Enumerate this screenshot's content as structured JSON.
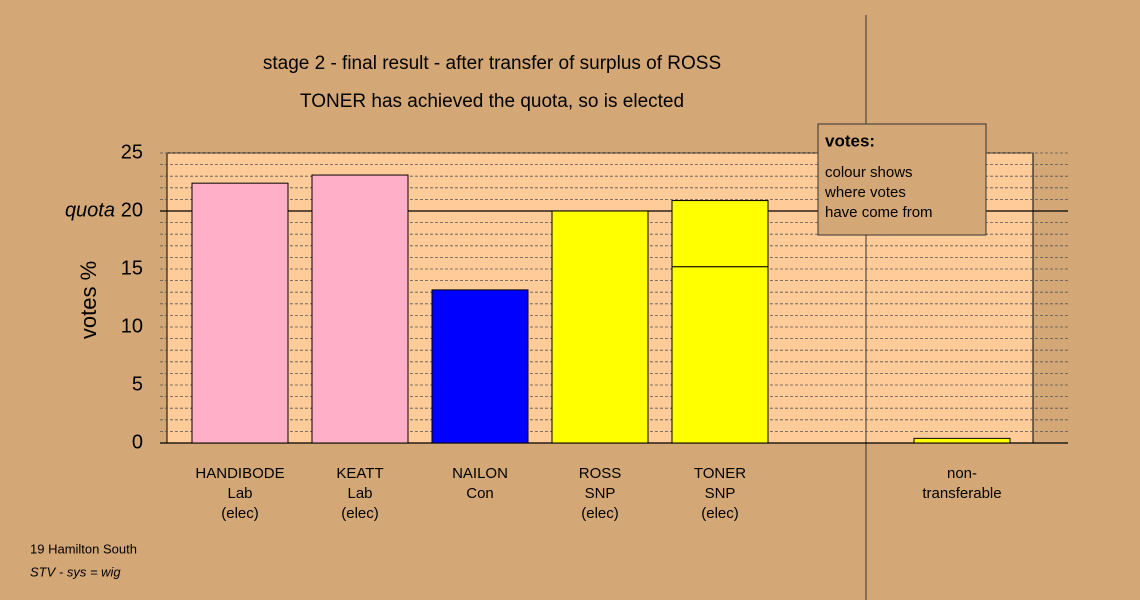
{
  "chart_data": {
    "type": "stacked_bar",
    "title": "stage 2 - final result - after transfer of surplus of ROSS",
    "subtitle": "TONER has achieved the quota, so is elected",
    "ylabel": "votes %",
    "quota": 20,
    "quota_label": "quota",
    "categories": [
      [
        "HANDIBODE",
        "Lab",
        "(elec)"
      ],
      [
        "KEATT",
        "Lab",
        "(elec)"
      ],
      [
        "NAILON",
        "Con"
      ],
      [
        "ROSS",
        "SNP",
        "(elec)"
      ],
      [
        "TONER",
        "SNP",
        "(elec)"
      ],
      [
        "non-",
        "transferable"
      ]
    ],
    "series": [
      {
        "values": [
          22.4,
          23.1,
          13.2,
          20.0,
          15.2,
          null
        ],
        "colors": [
          "#ffb0c8",
          "#ffb0c8",
          "#0000ff",
          "#ffff00",
          "#ffff00",
          "#ffff00"
        ]
      },
      {
        "values": [
          null,
          null,
          null,
          null,
          5.7,
          0.4
        ],
        "colors": [
          "#ffff00",
          "#ffff00",
          "#ffff00",
          "#ffff00",
          "#ffff00",
          "#ffff00"
        ]
      }
    ],
    "ylim": [
      0,
      25
    ],
    "yticks": [
      0,
      5,
      10,
      15,
      20,
      25
    ],
    "minor_yticks": [
      1,
      2,
      3,
      4,
      6,
      7,
      8,
      9,
      11,
      12,
      13,
      14,
      16,
      17,
      18,
      19,
      21,
      22,
      23,
      24
    ],
    "grid": true,
    "note": {
      "heading": "votes:",
      "lines": [
        "colour shows",
        "where votes",
        "have come from"
      ]
    },
    "footer": [
      "19 Hamilton South",
      "STV - sys = wig"
    ]
  }
}
